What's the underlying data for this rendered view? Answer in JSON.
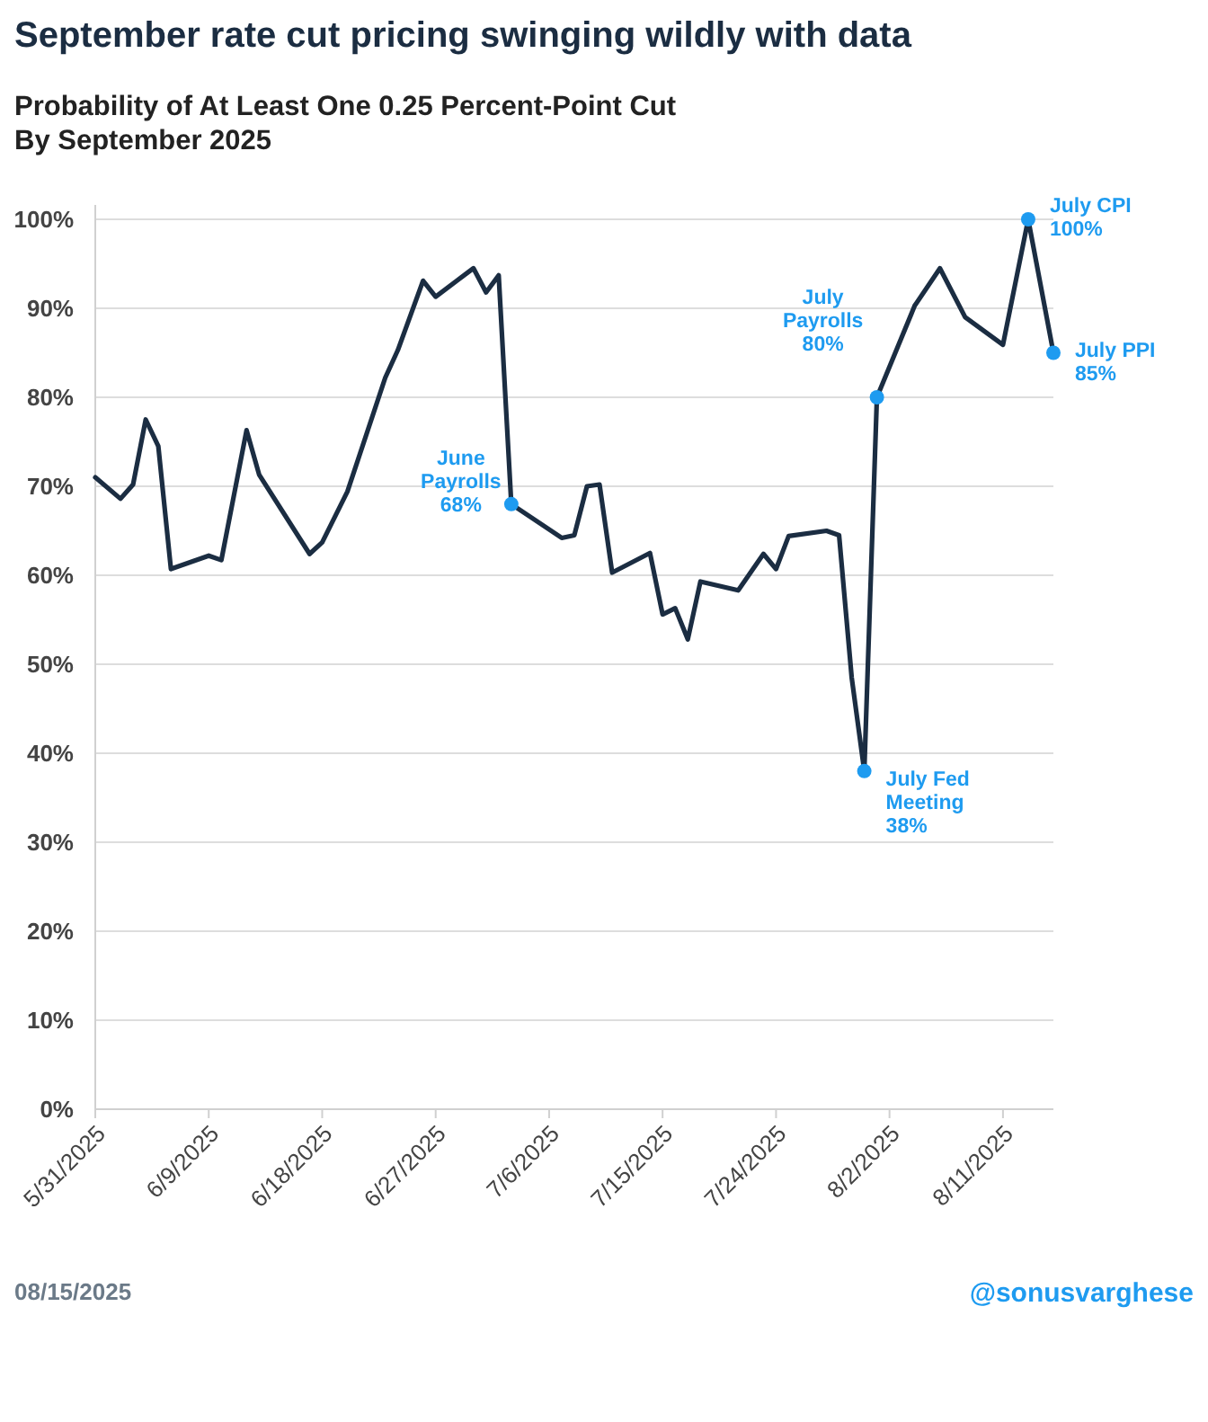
{
  "chart_data": {
    "type": "line",
    "title": "September rate cut pricing swinging wildly with data",
    "subtitle": "Probability of At Least One 0.25 Percent-Point Cut\nBy September 2025",
    "x": [
      "2025-05-31",
      "2025-06-02",
      "2025-06-03",
      "2025-06-04",
      "2025-06-05",
      "2025-06-06",
      "2025-06-09",
      "2025-06-10",
      "2025-06-12",
      "2025-06-13",
      "2025-06-17",
      "2025-06-18",
      "2025-06-20",
      "2025-06-23",
      "2025-06-24",
      "2025-06-26",
      "2025-06-27",
      "2025-06-30",
      "2025-07-01",
      "2025-07-02",
      "2025-07-03",
      "2025-07-07",
      "2025-07-08",
      "2025-07-09",
      "2025-07-10",
      "2025-07-11",
      "2025-07-14",
      "2025-07-15",
      "2025-07-16",
      "2025-07-17",
      "2025-07-18",
      "2025-07-21",
      "2025-07-23",
      "2025-07-24",
      "2025-07-25",
      "2025-07-28",
      "2025-07-29",
      "2025-07-30",
      "2025-07-31",
      "2025-08-01",
      "2025-08-04",
      "2025-08-06",
      "2025-08-08",
      "2025-08-11",
      "2025-08-13",
      "2025-08-15"
    ],
    "series": [
      {
        "color": "#1b2d42",
        "values": [
          71,
          68.6,
          70.2,
          77.5,
          74.5,
          60.7,
          62.2,
          61.7,
          76.3,
          71.3,
          62.4,
          63.7,
          69.4,
          82.2,
          85.3,
          93.1,
          91.3,
          94.5,
          91.8,
          93.7,
          68,
          64.2,
          64.5,
          70,
          70.2,
          60.3,
          62.5,
          55.6,
          56.3,
          52.8,
          59.3,
          58.3,
          62.4,
          60.7,
          64.4,
          65,
          64.5,
          48.5,
          38,
          80,
          90.3,
          94.5,
          89,
          85.9,
          100,
          85
        ]
      }
    ],
    "xlim": [
      "2025-05-31",
      "2025-08-15"
    ],
    "xticks": [
      {
        "value": "2025-05-31",
        "label": "5/31/2025"
      },
      {
        "value": "2025-06-09",
        "label": "6/9/2025"
      },
      {
        "value": "2025-06-18",
        "label": "6/18/2025"
      },
      {
        "value": "2025-06-27",
        "label": "6/27/2025"
      },
      {
        "value": "2025-07-06",
        "label": "7/6/2025"
      },
      {
        "value": "2025-07-15",
        "label": "7/15/2025"
      },
      {
        "value": "2025-07-24",
        "label": "7/24/2025"
      },
      {
        "value": "2025-08-02",
        "label": "8/2/2025"
      },
      {
        "value": "2025-08-11",
        "label": "8/11/2025"
      }
    ],
    "ylim": [
      0,
      100
    ],
    "yticks": [
      {
        "value": 0,
        "label": "0%"
      },
      {
        "value": 10,
        "label": "10%"
      },
      {
        "value": 20,
        "label": "20%"
      },
      {
        "value": 30,
        "label": "30%"
      },
      {
        "value": 40,
        "label": "40%"
      },
      {
        "value": 50,
        "label": "50%"
      },
      {
        "value": 60,
        "label": "60%"
      },
      {
        "value": 70,
        "label": "70%"
      },
      {
        "value": 80,
        "label": "80%"
      },
      {
        "value": 90,
        "label": "90%"
      },
      {
        "value": 100,
        "label": "100%"
      }
    ],
    "grid": "y",
    "marker": "none",
    "line_style": "solid",
    "annotations": [
      {
        "text": "June\nPayrolls\n68%",
        "x": "2025-07-03",
        "y": 68
      },
      {
        "text": "July Fed\nMeeting\n38%",
        "x": "2025-07-31",
        "y": 38
      },
      {
        "text": "July\nPayrolls\n80%",
        "x": "2025-08-01",
        "y": 80
      },
      {
        "text": "July CPI\n100%",
        "x": "2025-08-13",
        "y": 100
      },
      {
        "text": "July PPI\n85%",
        "x": "2025-08-15",
        "y": 85
      },
      "08/15/2025",
      "@sonusvarghese"
    ]
  }
}
